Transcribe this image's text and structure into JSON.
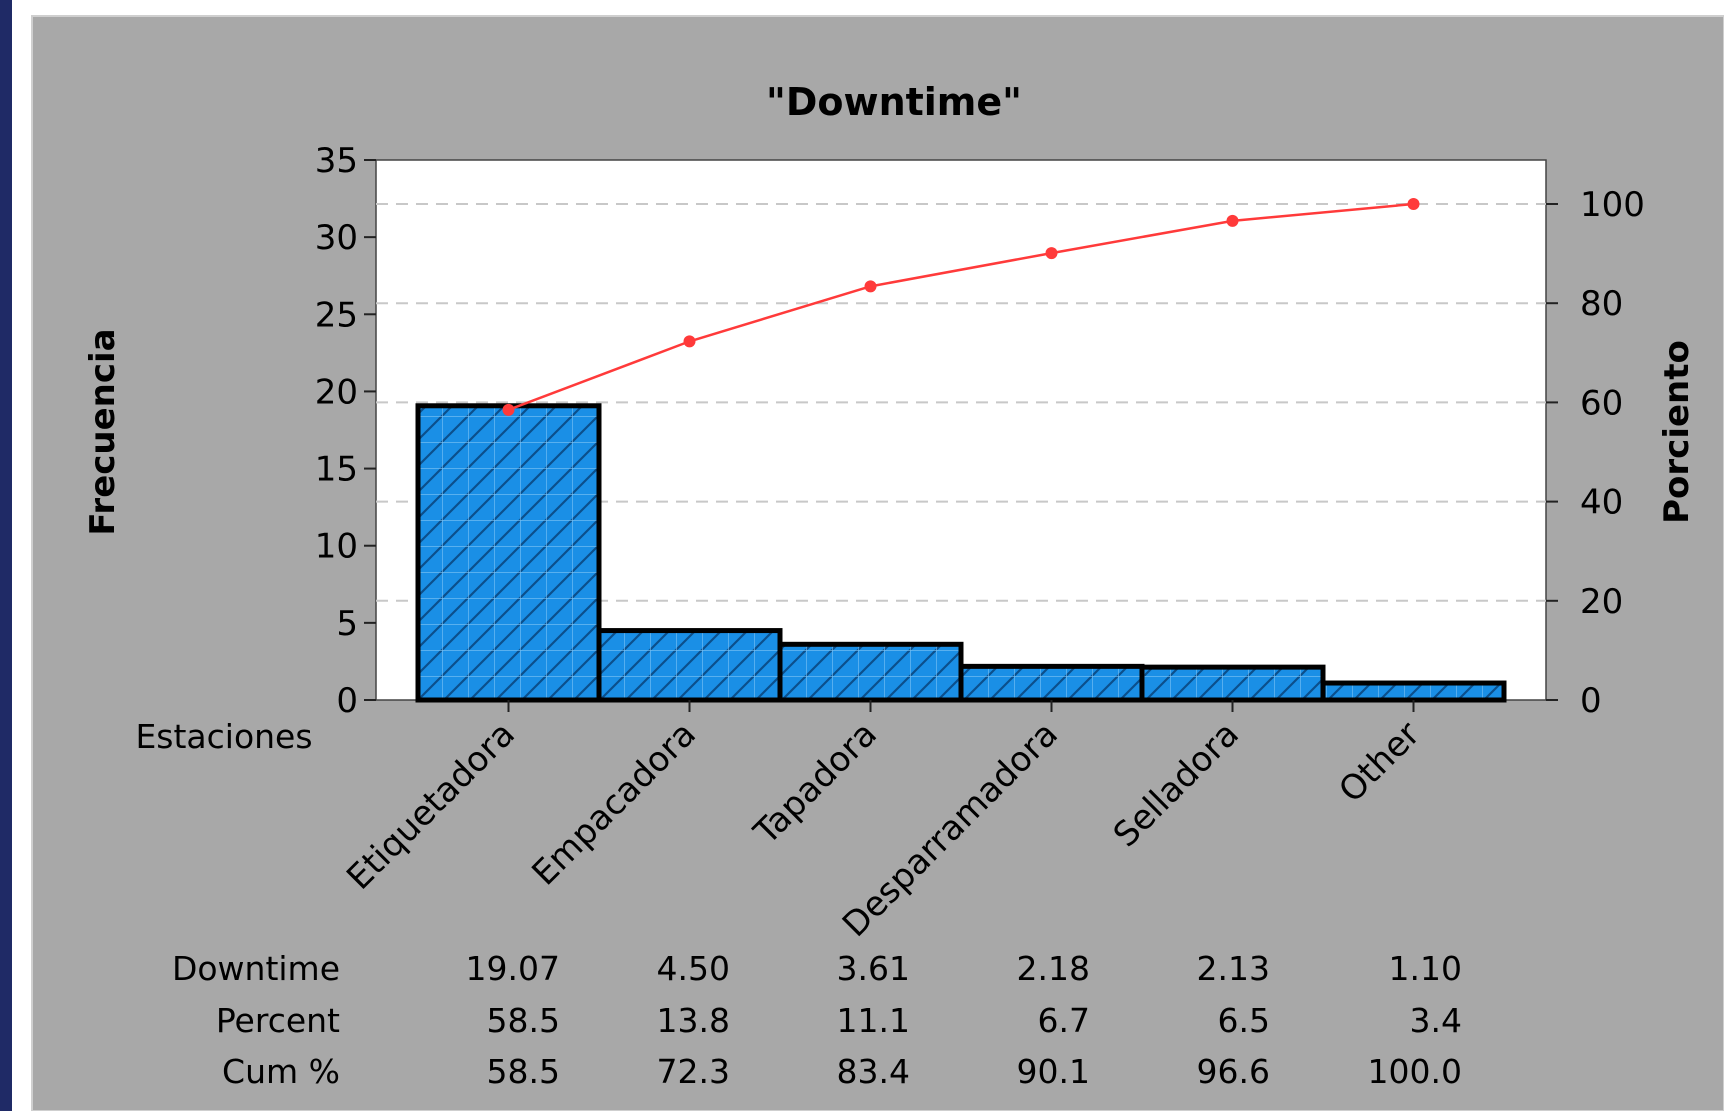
{
  "chart_data": {
    "type": "bar",
    "title": "\"Downtime\"",
    "factor_label": "Estaciones",
    "ylabel": "Frecuencia",
    "y2label": "Porciento",
    "ylim": [
      0,
      35
    ],
    "y2lim": [
      0,
      100
    ],
    "yticks": [
      0,
      5,
      10,
      15,
      20,
      25,
      30,
      35
    ],
    "y2ticks": [
      0,
      20,
      40,
      60,
      80,
      100
    ],
    "categories": [
      "Etiquetadora",
      "Empacadora",
      "Tapadora",
      "Desparramadora",
      "Selladora",
      "Other"
    ],
    "series": [
      {
        "type": "bar",
        "values": [
          19.07,
          4.5,
          3.61,
          2.18,
          2.13,
          1.1
        ]
      },
      {
        "type": "line",
        "axis": "right",
        "values": [
          58.5,
          72.3,
          83.4,
          90.1,
          96.6,
          100.0
        ]
      }
    ],
    "grid": "dashed horizontal at right-axis ticks",
    "table": {
      "rows": [
        {
          "label": "Downtime",
          "cells": [
            "19.07",
            "4.50",
            "3.61",
            "2.18",
            "2.13",
            "1.10"
          ]
        },
        {
          "label": "Percent",
          "cells": [
            "58.5",
            "13.8",
            "11.1",
            "6.7",
            "6.5",
            "3.4"
          ]
        },
        {
          "label": "Cum %",
          "cells": [
            "58.5",
            "72.3",
            "83.4",
            "90.1",
            "96.6",
            "100.0"
          ]
        }
      ]
    },
    "colors": {
      "bar_fill": "#1a8fe6",
      "bar_stroke": "#000000",
      "hatch": "#0b4f8c",
      "line": "#ff3a3a",
      "panel_bg": "#a8a8a8",
      "plot_bg": "#ffffff",
      "frame": "#1f2a66"
    }
  }
}
